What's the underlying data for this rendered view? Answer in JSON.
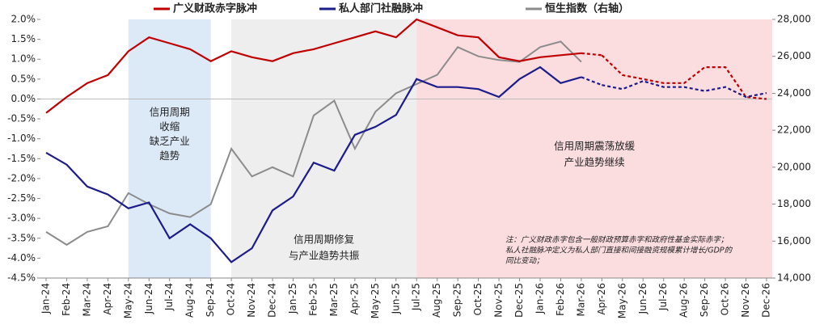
{
  "chart_data": {
    "type": "line",
    "categories": [
      "Jan-24",
      "Feb-24",
      "Mar-24",
      "Apr-24",
      "May-24",
      "Jun-24",
      "Jul-24",
      "Aug-24",
      "Sep-24",
      "Oct-24",
      "Nov-24",
      "Dec-24",
      "Jan-25",
      "Feb-25",
      "Mar-25",
      "Apr-25",
      "May-25",
      "Jun-25",
      "Jul-25",
      "Aug-25",
      "Sep-25",
      "Oct-25",
      "Nov-25",
      "Dec-25",
      "Jan-26",
      "Feb-26",
      "Mar-26",
      "Apr-26",
      "May-26",
      "Jun-26",
      "Jul-26",
      "Aug-26",
      "Sep-26",
      "Oct-26",
      "Nov-26",
      "Dec-26"
    ],
    "series": [
      {
        "name": "广义财政赤字脉冲",
        "color": "#c00000",
        "dashed_after": "Mar-26",
        "values": [
          -0.35,
          0.05,
          0.4,
          0.6,
          1.2,
          1.55,
          1.4,
          1.25,
          0.95,
          1.2,
          1.05,
          0.95,
          1.15,
          1.25,
          1.4,
          1.55,
          1.7,
          1.55,
          2.0,
          1.8,
          1.6,
          1.55,
          1.05,
          0.95,
          1.05,
          1.1,
          1.15,
          1.1,
          0.6,
          0.5,
          0.4,
          0.4,
          0.8,
          0.8,
          0.05,
          0.0
        ]
      },
      {
        "name": "私人部门社融脉冲",
        "color": "#1c1c8c",
        "dashed_after": "Mar-26",
        "values": [
          -1.35,
          -1.65,
          -2.2,
          -2.4,
          -2.75,
          -2.6,
          -3.5,
          -3.15,
          -3.5,
          -4.1,
          -3.75,
          -2.8,
          -2.45,
          -1.6,
          -1.8,
          -0.9,
          -0.7,
          -0.4,
          0.5,
          0.3,
          0.3,
          0.25,
          0.05,
          0.5,
          0.8,
          0.4,
          0.55,
          0.35,
          0.25,
          0.45,
          0.3,
          0.3,
          0.2,
          0.3,
          0.05,
          0.15
        ]
      },
      {
        "name": "恒生指数（右轴）",
        "color": "#8c8c8c",
        "axis": "y2",
        "values": [
          16500,
          15800,
          16500,
          16800,
          18600,
          18000,
          17500,
          17300,
          18000,
          21000,
          19500,
          20000,
          19500,
          22800,
          23600,
          21000,
          23000,
          24000,
          24500,
          25000,
          26500,
          26000,
          25800,
          25700,
          26500,
          26800,
          25700,
          null,
          null,
          null,
          null,
          null,
          null,
          null,
          null,
          null
        ]
      }
    ],
    "ylim": [
      -4.5,
      2.0
    ],
    "yticks": [
      {
        "value": -4.5,
        "label": "-4.5%"
      },
      {
        "value": -4.0,
        "label": "-4.0%"
      },
      {
        "value": -3.5,
        "label": "-3.5%"
      },
      {
        "value": -3.0,
        "label": "-3.0%"
      },
      {
        "value": -2.5,
        "label": "-2.5%"
      },
      {
        "value": -2.0,
        "label": "-2.0%"
      },
      {
        "value": -1.5,
        "label": "-1.5%"
      },
      {
        "value": -1.0,
        "label": "-1.0%"
      },
      {
        "value": -0.5,
        "label": "-0.5%"
      },
      {
        "value": 0,
        "label": "0.0%"
      },
      {
        "value": 0.5,
        "label": "0.5%"
      },
      {
        "value": 1.0,
        "label": "1.0%"
      },
      {
        "value": 1.5,
        "label": "1.5%"
      },
      {
        "value": 2.0,
        "label": "2.0%"
      }
    ],
    "y2lim": [
      14000,
      28000
    ],
    "y2ticks": [
      {
        "value": 14000,
        "label": "14,000"
      },
      {
        "value": 16000,
        "label": "16,000"
      },
      {
        "value": 18000,
        "label": "18,000"
      },
      {
        "value": 20000,
        "label": "20,000"
      },
      {
        "value": 22000,
        "label": "22,000"
      },
      {
        "value": 24000,
        "label": "24,000"
      },
      {
        "value": 26000,
        "label": "26,000"
      },
      {
        "value": 28000,
        "label": "28,000"
      }
    ],
    "regions": [
      {
        "from": "May-24",
        "to": "Sep-24",
        "color": "#dce9f7",
        "lines": [
          "信用周期",
          "收缩",
          "缺乏产业",
          "趋势"
        ]
      },
      {
        "from": "Oct-24",
        "to": "Jul-25",
        "color": "#eeeeee",
        "lines": [
          "信用周期修复",
          "与产业趋势共振"
        ]
      },
      {
        "from": "Jul-25",
        "to": "Dec-26",
        "color": "#fbdde0",
        "lines": [
          "信用周期震荡放缓",
          "产业趋势继续"
        ]
      }
    ],
    "note": [
      "注：广义财政赤字包含一般财政预算赤字和政府性基金实际赤字；",
      "私人社融脉冲定义为私人部门直接和间接融资规模累计增长/GDP的",
      "同比变动；"
    ]
  }
}
